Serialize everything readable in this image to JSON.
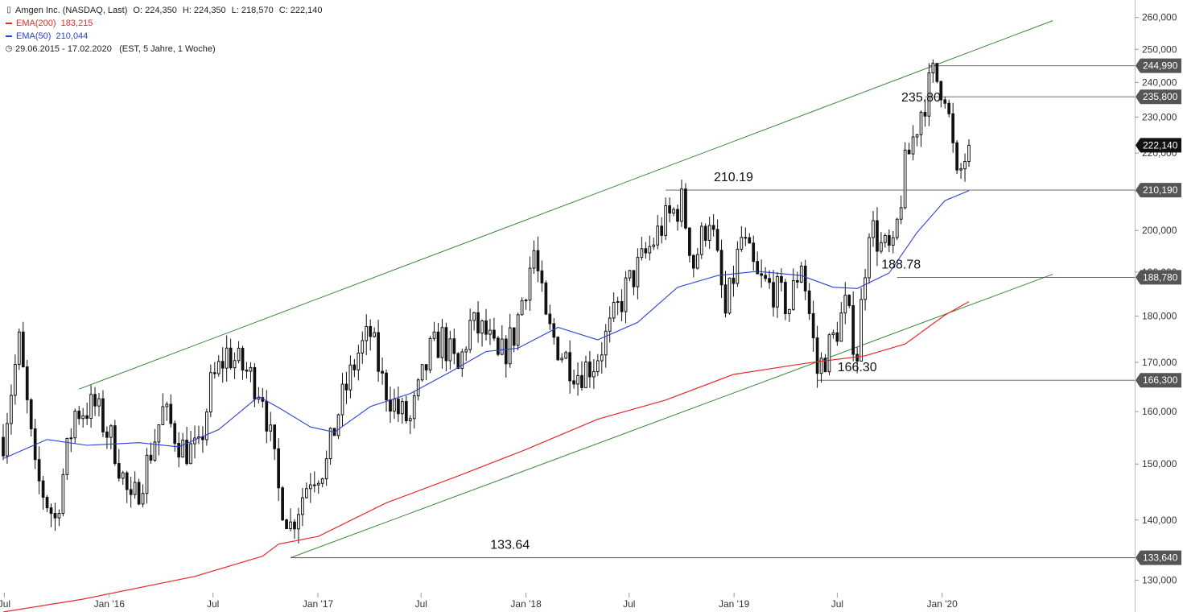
{
  "header": {
    "instrument": "Amgen Inc. (NASDAQ, Last)",
    "ohlc": [
      {
        "label": "O:",
        "value": "224,350"
      },
      {
        "label": "H:",
        "value": "224,350"
      },
      {
        "label": "L:",
        "value": "218,570"
      },
      {
        "label": "C:",
        "value": "222,140"
      }
    ],
    "ema200": {
      "label": "EMA(200)",
      "value": "183,215",
      "color": "#e8272c"
    },
    "ema50": {
      "label": "EMA(50)",
      "value": "210,044",
      "color": "#2a3ed8"
    },
    "range": "29.06.2015 - 17.02.2020",
    "range_note": "(EST, 5 Jahre, 1 Woche)"
  },
  "chart_data": {
    "type": "candlestick",
    "scale": "log",
    "ylim": [
      125,
      262
    ],
    "xlim": [
      "2015-06-29",
      "2020-02-17"
    ],
    "y_ticks": [
      {
        "value": 130,
        "label": "130,000"
      },
      {
        "value": 140,
        "label": "140,000"
      },
      {
        "value": 150,
        "label": "150,000"
      },
      {
        "value": 160,
        "label": "160,000"
      },
      {
        "value": 170,
        "label": "170,000"
      },
      {
        "value": 180,
        "label": "180,000"
      },
      {
        "value": 190,
        "label": "190,000"
      },
      {
        "value": 200,
        "label": "200,000"
      },
      {
        "value": 210,
        "label": "210,000"
      },
      {
        "value": 220,
        "label": "220,000"
      },
      {
        "value": 230,
        "label": "230,000"
      },
      {
        "value": 240,
        "label": "240,000"
      },
      {
        "value": 250,
        "label": "250,000"
      },
      {
        "value": 260,
        "label": "260,000"
      }
    ],
    "x_ticks": [
      {
        "date": "2015-07-01",
        "label": "Jul"
      },
      {
        "date": "2016-01-01",
        "label": "Jan '16"
      },
      {
        "date": "2016-07-01",
        "label": "Jul"
      },
      {
        "date": "2017-01-01",
        "label": "Jan '17"
      },
      {
        "date": "2017-07-01",
        "label": "Jul"
      },
      {
        "date": "2018-01-01",
        "label": "Jan '18"
      },
      {
        "date": "2018-07-01",
        "label": "Jul"
      },
      {
        "date": "2019-01-01",
        "label": "Jan '19"
      },
      {
        "date": "2019-07-01",
        "label": "Jul"
      },
      {
        "date": "2020-01-01",
        "label": "Jan '20"
      }
    ],
    "price_anchors": [
      {
        "date": "2015-06-29",
        "value": 155
      },
      {
        "date": "2015-07-27",
        "value": 174
      },
      {
        "date": "2015-08-24",
        "value": 148
      },
      {
        "date": "2015-09-28",
        "value": 140
      },
      {
        "date": "2015-11-02",
        "value": 160
      },
      {
        "date": "2015-12-07",
        "value": 161
      },
      {
        "date": "2016-01-11",
        "value": 153
      },
      {
        "date": "2016-02-08",
        "value": 142
      },
      {
        "date": "2016-03-07",
        "value": 150
      },
      {
        "date": "2016-04-04",
        "value": 160
      },
      {
        "date": "2016-05-09",
        "value": 153
      },
      {
        "date": "2016-06-06",
        "value": 152
      },
      {
        "date": "2016-06-27",
        "value": 165
      },
      {
        "date": "2016-07-25",
        "value": 172
      },
      {
        "date": "2016-08-29",
        "value": 168
      },
      {
        "date": "2016-09-26",
        "value": 164
      },
      {
        "date": "2016-10-24",
        "value": 145
      },
      {
        "date": "2016-11-14",
        "value": 139
      },
      {
        "date": "2016-12-19",
        "value": 148
      },
      {
        "date": "2017-01-16",
        "value": 150
      },
      {
        "date": "2017-02-06",
        "value": 160
      },
      {
        "date": "2017-03-13",
        "value": 172
      },
      {
        "date": "2017-04-03",
        "value": 176
      },
      {
        "date": "2017-04-24",
        "value": 166
      },
      {
        "date": "2017-05-22",
        "value": 160
      },
      {
        "date": "2017-06-12",
        "value": 158
      },
      {
        "date": "2017-07-17",
        "value": 172
      },
      {
        "date": "2017-08-07",
        "value": 175
      },
      {
        "date": "2017-09-04",
        "value": 168
      },
      {
        "date": "2017-09-25",
        "value": 178
      },
      {
        "date": "2017-10-23",
        "value": 176
      },
      {
        "date": "2017-11-13",
        "value": 170
      },
      {
        "date": "2017-12-11",
        "value": 176
      },
      {
        "date": "2018-01-15",
        "value": 195
      },
      {
        "date": "2018-02-05",
        "value": 178
      },
      {
        "date": "2018-03-05",
        "value": 172
      },
      {
        "date": "2018-04-02",
        "value": 168
      },
      {
        "date": "2018-04-30",
        "value": 170
      },
      {
        "date": "2018-05-28",
        "value": 177
      },
      {
        "date": "2018-06-25",
        "value": 186
      },
      {
        "date": "2018-07-30",
        "value": 194
      },
      {
        "date": "2018-08-27",
        "value": 201
      },
      {
        "date": "2018-10-01",
        "value": 207
      },
      {
        "date": "2018-10-22",
        "value": 192
      },
      {
        "date": "2018-11-19",
        "value": 204
      },
      {
        "date": "2018-12-17",
        "value": 180
      },
      {
        "date": "2019-01-14",
        "value": 198
      },
      {
        "date": "2019-02-11",
        "value": 188
      },
      {
        "date": "2019-03-11",
        "value": 186
      },
      {
        "date": "2019-04-08",
        "value": 182
      },
      {
        "date": "2019-04-29",
        "value": 193
      },
      {
        "date": "2019-05-27",
        "value": 168
      },
      {
        "date": "2019-06-24",
        "value": 175
      },
      {
        "date": "2019-07-15",
        "value": 182
      },
      {
        "date": "2019-08-05",
        "value": 172
      },
      {
        "date": "2019-08-26",
        "value": 202
      },
      {
        "date": "2019-09-16",
        "value": 196
      },
      {
        "date": "2019-10-07",
        "value": 194
      },
      {
        "date": "2019-10-28",
        "value": 216
      },
      {
        "date": "2019-11-25",
        "value": 232
      },
      {
        "date": "2019-12-16",
        "value": 242
      },
      {
        "date": "2020-01-06",
        "value": 238
      },
      {
        "date": "2020-01-27",
        "value": 212
      },
      {
        "date": "2020-02-17",
        "value": 222
      }
    ],
    "ema50": [
      {
        "date": "2015-06-29",
        "value": 151
      },
      {
        "date": "2015-09-14",
        "value": 154.6
      },
      {
        "date": "2015-11-23",
        "value": 153.5
      },
      {
        "date": "2016-02-22",
        "value": 154
      },
      {
        "date": "2016-05-02",
        "value": 153.2
      },
      {
        "date": "2016-07-11",
        "value": 156.5
      },
      {
        "date": "2016-09-19",
        "value": 163
      },
      {
        "date": "2016-10-24",
        "value": 160.8
      },
      {
        "date": "2016-12-19",
        "value": 157
      },
      {
        "date": "2017-01-30",
        "value": 156
      },
      {
        "date": "2017-04-03",
        "value": 161
      },
      {
        "date": "2017-06-12",
        "value": 163.6
      },
      {
        "date": "2017-08-21",
        "value": 168
      },
      {
        "date": "2017-10-23",
        "value": 172.3
      },
      {
        "date": "2017-12-18",
        "value": 173
      },
      {
        "date": "2018-02-26",
        "value": 177.5
      },
      {
        "date": "2018-05-07",
        "value": 174.8
      },
      {
        "date": "2018-07-16",
        "value": 178.6
      },
      {
        "date": "2018-09-24",
        "value": 186.5
      },
      {
        "date": "2018-12-03",
        "value": 189.2
      },
      {
        "date": "2019-02-11",
        "value": 190.2
      },
      {
        "date": "2019-04-29",
        "value": 189.2
      },
      {
        "date": "2019-06-24",
        "value": 186.5
      },
      {
        "date": "2019-08-05",
        "value": 186.2
      },
      {
        "date": "2019-09-30",
        "value": 189.8
      },
      {
        "date": "2019-11-18",
        "value": 199.5
      },
      {
        "date": "2020-01-06",
        "value": 207.5
      },
      {
        "date": "2020-02-17",
        "value": 210.044
      }
    ],
    "ema200": [
      {
        "date": "2015-06-29",
        "value": 125
      },
      {
        "date": "2015-11-16",
        "value": 127
      },
      {
        "date": "2016-05-30",
        "value": 130.6
      },
      {
        "date": "2016-09-26",
        "value": 133.9
      },
      {
        "date": "2016-10-24",
        "value": 135.9
      },
      {
        "date": "2017-01-02",
        "value": 137.2
      },
      {
        "date": "2017-05-01",
        "value": 143
      },
      {
        "date": "2017-09-04",
        "value": 147.8
      },
      {
        "date": "2018-01-01",
        "value": 152.7
      },
      {
        "date": "2018-05-07",
        "value": 158.5
      },
      {
        "date": "2018-09-03",
        "value": 162.3
      },
      {
        "date": "2018-12-31",
        "value": 167.5
      },
      {
        "date": "2019-05-06",
        "value": 169.8
      },
      {
        "date": "2019-08-19",
        "value": 171.4
      },
      {
        "date": "2019-10-28",
        "value": 173.9
      },
      {
        "date": "2020-01-06",
        "value": 180.2
      },
      {
        "date": "2020-02-17",
        "value": 183.215
      }
    ],
    "trendlines": [
      {
        "name": "upper-channel-line",
        "color": "#3a8a3a",
        "from": {
          "date": "2015-11-09",
          "value": 164.5
        },
        "to": {
          "date": "2020-07-13",
          "value": 259
        }
      },
      {
        "name": "lower-channel-line",
        "color": "#3a8a3a",
        "from": {
          "date": "2016-11-14",
          "value": 133.64
        },
        "to": {
          "date": "2020-07-13",
          "value": 189.5
        }
      }
    ],
    "levels": [
      {
        "value": 244.99,
        "tag": "244,990",
        "from": "2019-12-09",
        "label": ""
      },
      {
        "value": 235.8,
        "tag": "235,800",
        "from": "2019-12-02",
        "label": "235.80",
        "label_date": "2019-11-25"
      },
      {
        "value": 210.19,
        "tag": "210,190",
        "from": "2018-09-03",
        "label": "210.19",
        "label_date": "2018-12-31"
      },
      {
        "value": 188.78,
        "tag": "188,780",
        "from": "2019-10-14",
        "label": "188.78",
        "label_date": "2019-10-21"
      },
      {
        "value": 166.3,
        "tag": "166,300",
        "from": "2019-05-27",
        "label": "166.30",
        "label_date": "2019-08-05"
      },
      {
        "value": 133.64,
        "tag": "133,640",
        "from": "2016-11-14",
        "label": "133.64",
        "label_date": "2017-12-04"
      }
    ],
    "last_price": {
      "value": 222.14,
      "tag": "222,140"
    }
  }
}
